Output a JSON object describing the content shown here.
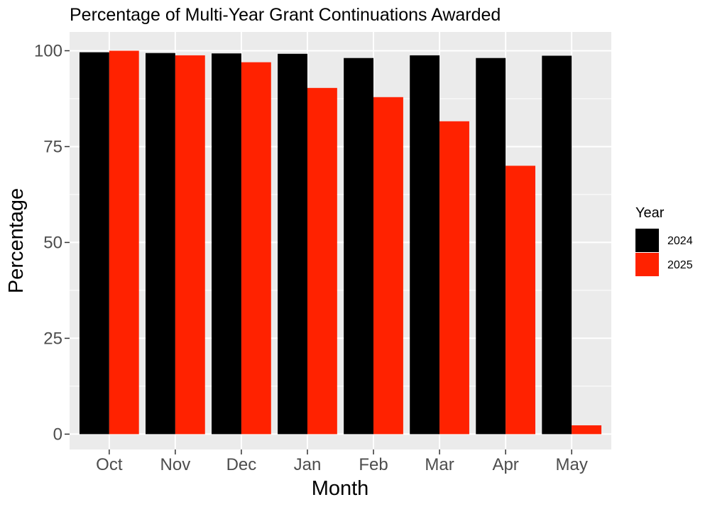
{
  "chart_data": {
    "type": "bar",
    "title": "Percentage of Multi-Year Grant Continuations Awarded",
    "xlabel": "Month",
    "ylabel": "Percentage",
    "categories": [
      "Oct",
      "Nov",
      "Dec",
      "Jan",
      "Feb",
      "Mar",
      "Apr",
      "May"
    ],
    "series": [
      {
        "name": "2024",
        "color": "#000000",
        "values": [
          99.6,
          99.4,
          99.3,
          99.2,
          98.1,
          98.8,
          98.1,
          98.7
        ]
      },
      {
        "name": "2025",
        "color": "#ff2200",
        "values": [
          100.0,
          98.8,
          97.0,
          90.3,
          87.9,
          81.6,
          70.0,
          2.3
        ]
      }
    ],
    "ylim": [
      -4.0,
      104.9
    ],
    "yticks": [
      0,
      25,
      50,
      75,
      100
    ],
    "grid": true,
    "legend": {
      "title": "Year",
      "placement": "right"
    }
  }
}
